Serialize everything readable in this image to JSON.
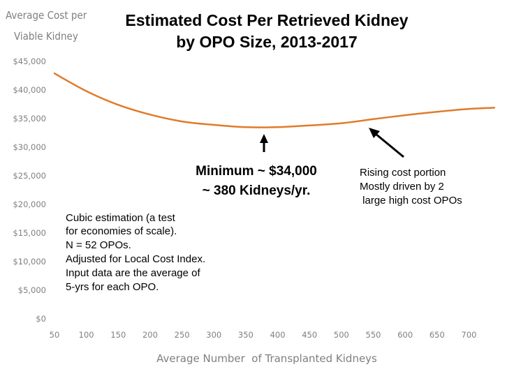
{
  "chart_data": {
    "type": "line",
    "title": "Estimated Cost Per Retrieved Kidney",
    "subtitle": "by OPO Size, 2013-2017",
    "ylabel": [
      "Average Cost per",
      "Viable Kidney"
    ],
    "xlabel": "Average Number  of Transplanted Kidneys",
    "xlim": [
      50,
      740
    ],
    "ylim": [
      0,
      45000
    ],
    "x_ticks": [
      50,
      100,
      150,
      200,
      250,
      300,
      350,
      400,
      450,
      500,
      550,
      600,
      650,
      700
    ],
    "y_ticks": [
      0,
      5000,
      10000,
      15000,
      20000,
      25000,
      30000,
      35000,
      40000,
      45000
    ],
    "y_tick_labels": [
      "$0",
      "$5,000",
      "$10,000",
      "$15,000",
      "$20,000",
      "$25,000",
      "$30,000",
      "$35,000",
      "$40,000",
      "$45,000"
    ],
    "grid": false,
    "series": [
      {
        "color": "#e07b2a",
        "x": [
          50,
          100,
          150,
          200,
          250,
          300,
          350,
          400,
          450,
          500,
          550,
          600,
          650,
          700,
          740
        ],
        "y": [
          42900,
          39800,
          37400,
          35700,
          34500,
          33900,
          33500,
          33500,
          33800,
          34200,
          34900,
          35600,
          36200,
          36700,
          36900
        ]
      }
    ],
    "annotations": {
      "minimum_line1": "Minimum ~ $34,000",
      "minimum_line2": "~ 380 Kidneys/yr.",
      "rising_lines": [
        "Rising cost portion",
        "Mostly driven by 2",
        " large high cost OPOs"
      ],
      "method_lines": [
        "Cubic estimation (a test",
        "for economies of scale).",
        "N = 52 OPOs.",
        "Adjusted for Local Cost Index.",
        "Input data are the average of",
        "5-yrs for each OPO."
      ]
    }
  }
}
